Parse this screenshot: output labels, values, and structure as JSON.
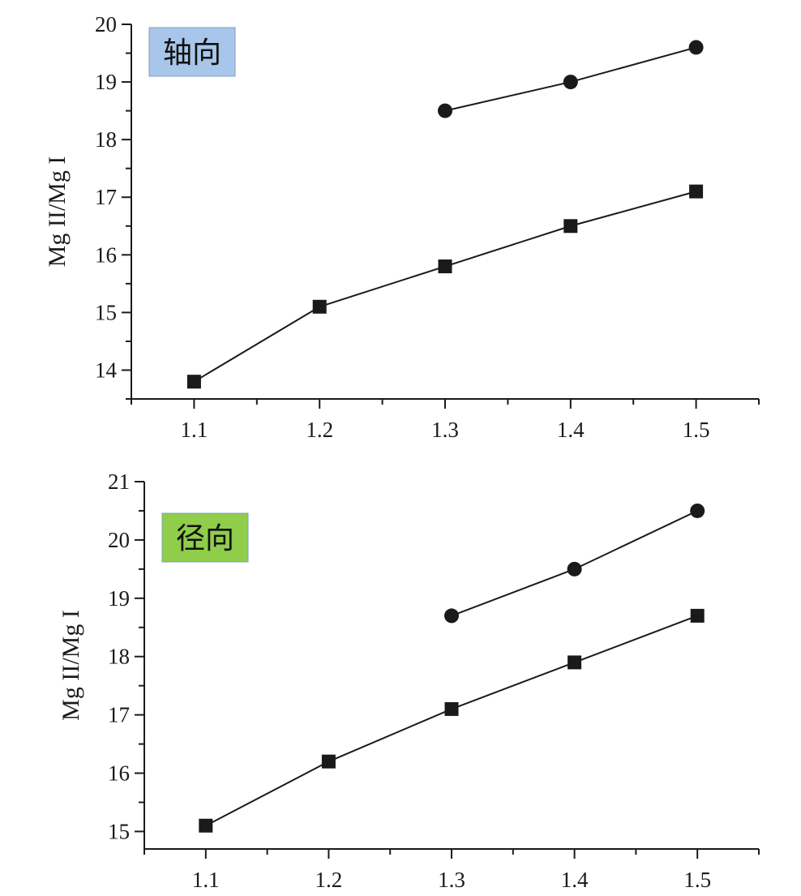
{
  "chart_data": [
    {
      "type": "line",
      "title": "",
      "label_box": {
        "text": "轴向",
        "color": "#a8c6ea"
      },
      "ylabel": "Mg II/Mg I",
      "xlabel": "",
      "xlim": [
        1.05,
        1.55
      ],
      "ylim": [
        13.5,
        20
      ],
      "x_ticks": [
        1.1,
        1.2,
        1.3,
        1.4,
        1.5
      ],
      "x_tick_labels": [
        "1.1",
        "1.2",
        "1.3",
        "1.4",
        "1.5"
      ],
      "y_ticks": [
        14,
        15,
        16,
        17,
        18,
        19,
        20
      ],
      "y_tick_labels": [
        "14",
        "15",
        "16",
        "17",
        "18",
        "19",
        "20"
      ],
      "grid": false,
      "series": [
        {
          "marker": "circle",
          "x": [
            1.3,
            1.4,
            1.5
          ],
          "y": [
            18.5,
            19.0,
            19.6
          ]
        },
        {
          "marker": "square",
          "x": [
            1.1,
            1.2,
            1.3,
            1.4,
            1.5
          ],
          "y": [
            13.8,
            15.1,
            15.8,
            16.5,
            17.1
          ]
        }
      ]
    },
    {
      "type": "line",
      "title": "",
      "label_box": {
        "text": "径向",
        "color": "#8fcd4a"
      },
      "ylabel": "Mg II/Mg I",
      "xlabel": "",
      "xlim": [
        1.05,
        1.55
      ],
      "ylim": [
        14.7,
        21
      ],
      "x_ticks": [
        1.1,
        1.2,
        1.3,
        1.4,
        1.5
      ],
      "x_tick_labels": [
        "1.1",
        "1.2",
        "1.3",
        "1.4",
        "1.5"
      ],
      "y_ticks": [
        15,
        16,
        17,
        18,
        19,
        20,
        21
      ],
      "y_tick_labels": [
        "15",
        "16",
        "17",
        "18",
        "19",
        "20",
        "21"
      ],
      "grid": false,
      "series": [
        {
          "marker": "circle",
          "x": [
            1.3,
            1.4,
            1.5
          ],
          "y": [
            18.7,
            19.5,
            20.5
          ]
        },
        {
          "marker": "square",
          "x": [
            1.1,
            1.2,
            1.3,
            1.4,
            1.5
          ],
          "y": [
            15.1,
            16.2,
            17.1,
            17.9,
            18.7
          ]
        }
      ]
    }
  ]
}
